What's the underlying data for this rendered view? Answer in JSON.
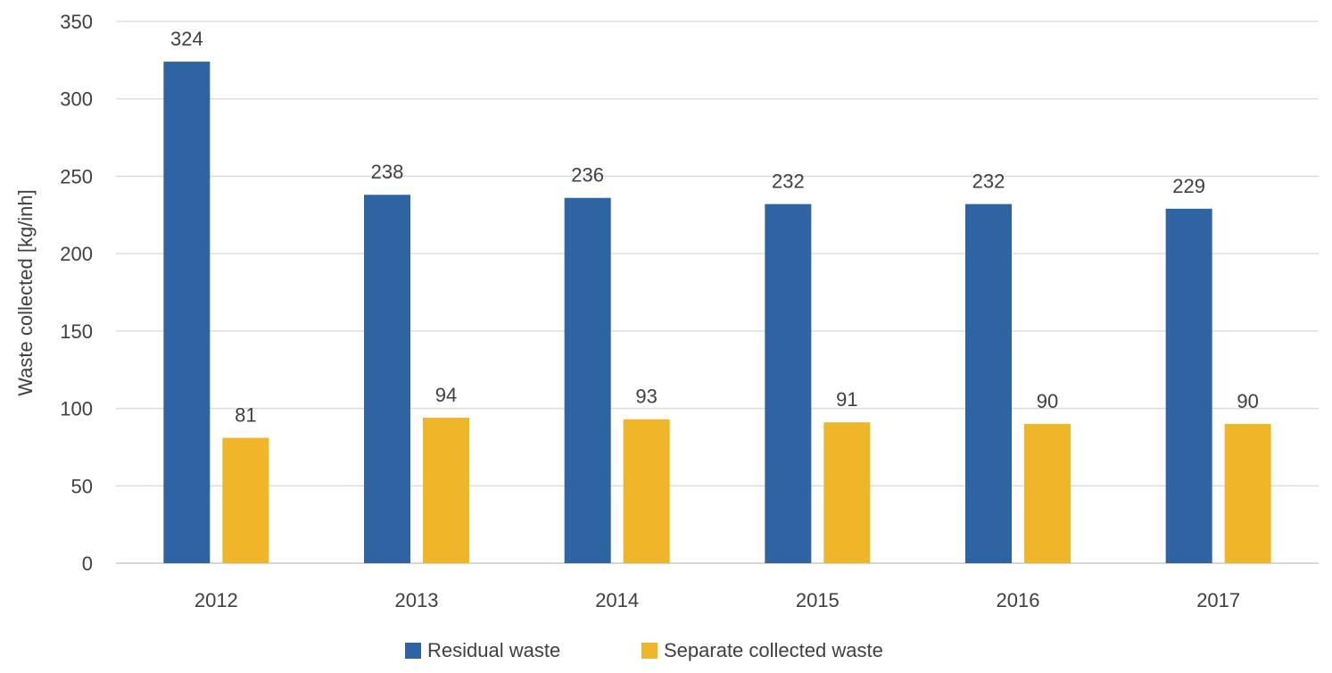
{
  "chart_data": {
    "type": "bar",
    "categories": [
      "2012",
      "2013",
      "2014",
      "2015",
      "2016",
      "2017"
    ],
    "series": [
      {
        "name": "Residual waste",
        "values": [
          324,
          238,
          236,
          232,
          232,
          229
        ],
        "color": "#2E64A1"
      },
      {
        "name": "Separate collected waste",
        "values": [
          81,
          94,
          93,
          91,
          90,
          90
        ],
        "color": "#F0B62A"
      }
    ],
    "ylabel": "Waste collected [kg/inh]",
    "xlabel": "",
    "ylim": [
      0,
      350
    ],
    "yticks": [
      "0",
      "50",
      "100",
      "150",
      "200",
      "250",
      "300",
      "350"
    ],
    "grid": true,
    "legend_position": "bottom",
    "data_labels": true
  }
}
